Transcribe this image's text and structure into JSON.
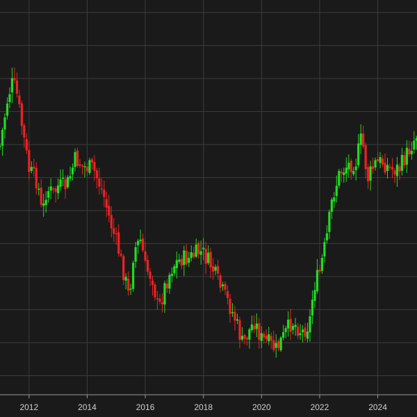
{
  "chart_data": {
    "type": "candlestick",
    "title": "",
    "xlabel": "",
    "ylabel": "",
    "grid": true,
    "legend": "none",
    "xlim": [
      2011.0,
      2025.35
    ],
    "ylim": [
      0,
      600
    ],
    "y_axis_labels_visible": false,
    "x_ticks": [
      {
        "value": 2012,
        "label": "2012"
      },
      {
        "value": 2014,
        "label": "2014"
      },
      {
        "value": 2016,
        "label": "2016"
      },
      {
        "value": 2018,
        "label": "2018"
      },
      {
        "value": 2020,
        "label": "2020"
      },
      {
        "value": 2022,
        "label": "2022"
      },
      {
        "value": 2024,
        "label": "2024"
      }
    ],
    "colors": {
      "up": "#22dd22",
      "down": "#ee2222",
      "background": "#1a1a1a",
      "grid": "#3c3c3c",
      "axis": "#9a9a9a",
      "text": "#d0d0d0"
    },
    "series_anchor_points": [
      [
        2011.0,
        210
      ],
      [
        2011.25,
        145
      ],
      [
        2011.4,
        120
      ],
      [
        2011.55,
        128
      ],
      [
        2011.75,
        180
      ],
      [
        2012.0,
        245
      ],
      [
        2012.3,
        262
      ],
      [
        2012.45,
        312
      ],
      [
        2012.6,
        272
      ],
      [
        2012.85,
        278
      ],
      [
        2013.0,
        268
      ],
      [
        2013.3,
        268
      ],
      [
        2013.6,
        228
      ],
      [
        2013.85,
        240
      ],
      [
        2014.2,
        242
      ],
      [
        2014.55,
        278
      ],
      [
        2014.8,
        320
      ],
      [
        2015.05,
        355
      ],
      [
        2015.3,
        400
      ],
      [
        2015.45,
        430
      ],
      [
        2015.6,
        360
      ],
      [
        2015.85,
        345
      ],
      [
        2016.0,
        385
      ],
      [
        2016.25,
        400
      ],
      [
        2016.45,
        448
      ],
      [
        2016.7,
        408
      ],
      [
        2016.95,
        382
      ],
      [
        2017.25,
        372
      ],
      [
        2017.5,
        372
      ],
      [
        2017.85,
        362
      ],
      [
        2018.0,
        365
      ],
      [
        2018.3,
        385
      ],
      [
        2018.6,
        415
      ],
      [
        2018.85,
        435
      ],
      [
        2019.1,
        460
      ],
      [
        2019.35,
        496
      ],
      [
        2019.55,
        478
      ],
      [
        2019.75,
        462
      ],
      [
        2020.0,
        488
      ],
      [
        2020.2,
        492
      ],
      [
        2020.5,
        503
      ],
      [
        2020.75,
        485
      ],
      [
        2021.05,
        462
      ],
      [
        2021.4,
        478
      ],
      [
        2021.65,
        465
      ],
      [
        2021.8,
        412
      ],
      [
        2022.0,
        392
      ],
      [
        2022.25,
        340
      ],
      [
        2022.45,
        282
      ],
      [
        2022.7,
        248
      ],
      [
        2022.95,
        238
      ],
      [
        2023.25,
        232
      ],
      [
        2023.45,
        196
      ],
      [
        2023.65,
        258
      ],
      [
        2023.9,
        236
      ],
      [
        2024.15,
        232
      ],
      [
        2024.45,
        244
      ],
      [
        2024.75,
        242
      ],
      [
        2025.0,
        222
      ],
      [
        2025.35,
        192
      ]
    ]
  }
}
